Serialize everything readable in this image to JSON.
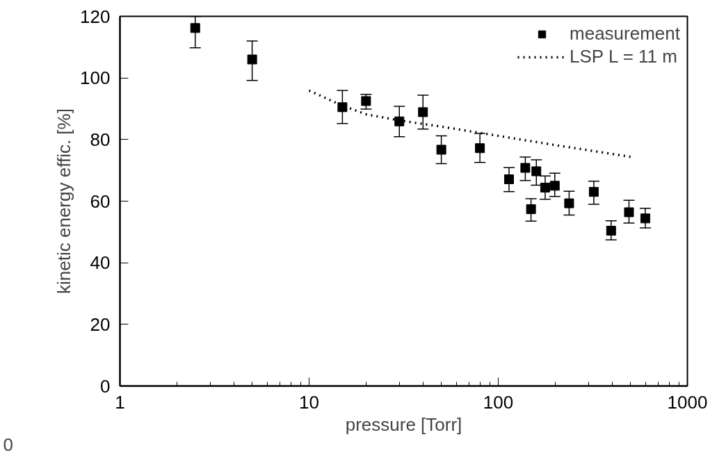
{
  "chart_data": {
    "type": "scatter",
    "xlabel": "pressure [Torr]",
    "ylabel": "kinetic energy effic. [%]",
    "xlim": [
      1,
      1000
    ],
    "xticks": [
      1,
      10,
      100,
      1000
    ],
    "ylim": [
      0,
      120
    ],
    "yticks": [
      0,
      20,
      40,
      60,
      80,
      100,
      120
    ],
    "log": "x",
    "grid": false,
    "legend": "top right",
    "annotations": [
      "0"
    ],
    "series": [
      {
        "name": "measurement",
        "color": "#000000",
        "marker": "square",
        "x": [
          2.5,
          5,
          15,
          20,
          30,
          40,
          50,
          80,
          114,
          139,
          149,
          159,
          177,
          199,
          237,
          320,
          395,
          491,
          599
        ],
        "values": [
          116.2,
          106,
          90.5,
          92.5,
          85.9,
          88.9,
          76.7,
          77.2,
          67.1,
          70.8,
          57.4,
          69.7,
          64.4,
          65.0,
          59.3,
          63.0,
          50.4,
          56.4,
          54.4
        ],
        "errors": [
          [
            109.8,
            120
          ],
          [
            99.2,
            112
          ],
          [
            85.2,
            95.9
          ],
          [
            89.9,
            94.7
          ],
          [
            80.9,
            90.8
          ],
          [
            83.4,
            94.4
          ],
          [
            72.2,
            81.2
          ],
          [
            72.6,
            82.0
          ],
          [
            63.1,
            70.9
          ],
          [
            66.7,
            74.3
          ],
          [
            53.5,
            60.8
          ],
          [
            65.2,
            73.4
          ],
          [
            60.6,
            68.2
          ],
          [
            61.5,
            69.1
          ],
          [
            55.5,
            63.2
          ],
          [
            59.0,
            66.5
          ],
          [
            47.4,
            53.6
          ],
          [
            52.9,
            60.3
          ],
          [
            51.3,
            57.7
          ]
        ]
      },
      {
        "name": "LSP L = 11 m",
        "type": "line",
        "color": "#000000",
        "line_style": "dotted",
        "marker": "none",
        "x": [
          10,
          15,
          20,
          30,
          50,
          100,
          200,
          500
        ],
        "values": [
          95.9,
          91.0,
          88.2,
          86.2,
          84.2,
          81.2,
          78.2,
          74.4
        ]
      }
    ]
  }
}
